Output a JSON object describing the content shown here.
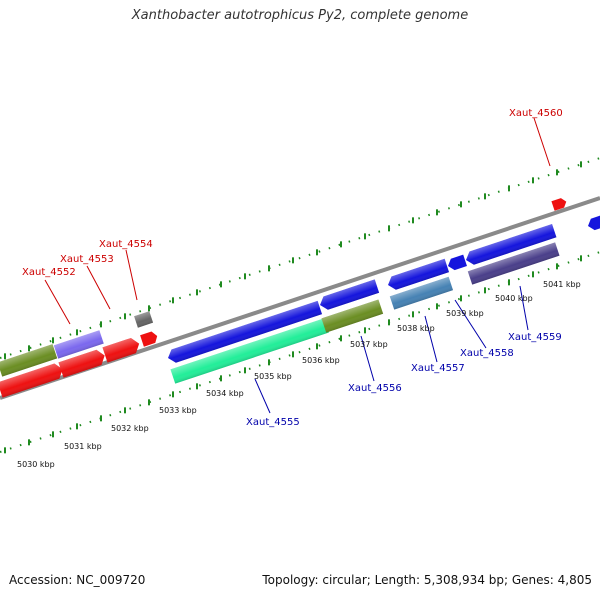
{
  "title": "Xanthobacter autotrophicus Py2, complete genome",
  "footer": {
    "accession": "Accession: NC_009720",
    "stats": "Topology: circular; Length: 5,308,934 bp; Genes: 4,805"
  },
  "colors": {
    "backbone": "#8a8a8a",
    "ticks": "#1f8a1f",
    "forward_label": "#cc0000",
    "reverse_label": "#0000aa",
    "scale_label": "#111111"
  },
  "scale_labels": [
    "5030 kbp",
    "5031 kbp",
    "5032 kbp",
    "5033 kbp",
    "5034 kbp",
    "5035 kbp",
    "5036 kbp",
    "5037 kbp",
    "5038 kbp",
    "5039 kbp",
    "5040 kbp",
    "5041 kbp"
  ],
  "gene_labels": [
    {
      "name": "Xaut_4552",
      "strand": "forward"
    },
    {
      "name": "Xaut_4553",
      "strand": "forward"
    },
    {
      "name": "Xaut_4554",
      "strand": "forward"
    },
    {
      "name": "Xaut_4560",
      "strand": "forward"
    },
    {
      "name": "Xaut_4555",
      "strand": "reverse"
    },
    {
      "name": "Xaut_4556",
      "strand": "reverse"
    },
    {
      "name": "Xaut_4557",
      "strand": "reverse"
    },
    {
      "name": "Xaut_4558",
      "strand": "reverse"
    },
    {
      "name": "Xaut_4559",
      "strand": "reverse"
    }
  ],
  "features": [
    {
      "name": "olive-bar-left",
      "color": "#6b8e23"
    },
    {
      "name": "purple-bar-left",
      "color": "#7b68ee"
    },
    {
      "name": "red-arrow-1",
      "color": "#ee1111"
    },
    {
      "name": "red-arrow-2",
      "color": "#ee1111"
    },
    {
      "name": "red-arrow-3",
      "color": "#ee1111"
    },
    {
      "name": "red-arrow-4",
      "color": "#ee1111"
    },
    {
      "name": "grey-box",
      "color": "#666666"
    },
    {
      "name": "red-pentagon-top",
      "color": "#ee1111"
    },
    {
      "name": "blue-arrow-long",
      "color": "#1515dd"
    },
    {
      "name": "blue-arrow-2",
      "color": "#1515dd"
    },
    {
      "name": "blue-arrow-3",
      "color": "#1515dd"
    },
    {
      "name": "blue-arrow-4",
      "color": "#1515dd"
    },
    {
      "name": "blue-arrow-5",
      "color": "#1515dd"
    },
    {
      "name": "blue-arrow-edge",
      "color": "#1515dd"
    },
    {
      "name": "cyan-bar",
      "color": "#22ee99"
    },
    {
      "name": "olive-bar-right",
      "color": "#6b8e23"
    },
    {
      "name": "steel-bar",
      "color": "#4682b4"
    },
    {
      "name": "navy-bar",
      "color": "#4a3f8a"
    }
  ]
}
